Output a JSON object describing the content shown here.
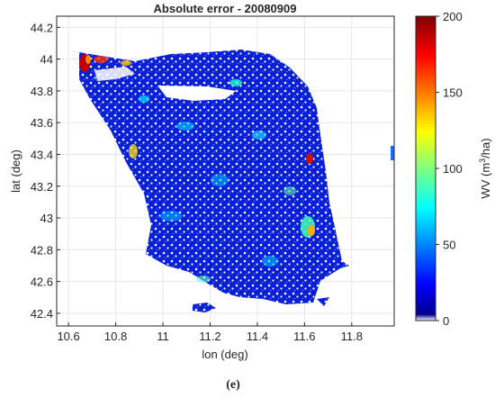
{
  "map": {
    "title": "Absolute error - 20080909",
    "xlabel": "lon (deg)",
    "ylabel": "lat (deg)",
    "panel_label": "(e)",
    "xlim": [
      10.55,
      11.98
    ],
    "ylim": [
      42.32,
      44.27
    ],
    "x_ticks": [
      "10.6",
      "10.8",
      "11",
      "11.2",
      "11.4",
      "11.6",
      "11.8"
    ],
    "y_ticks": [
      "44.2",
      "44",
      "43.8",
      "43.6",
      "43.4",
      "43.2",
      "43",
      "42.8",
      "42.6",
      "42.4"
    ],
    "grid": true,
    "colorbar": {
      "label_prefix": "WV (m",
      "label_sup": "3",
      "label_suffix": "/ha)",
      "range": [
        0,
        200
      ],
      "ticks": [
        "200",
        "150",
        "100",
        "50",
        "0"
      ],
      "colormap": "jet"
    },
    "colors": {
      "dominant": "#0a1fd6",
      "axis": "#262626",
      "grid": "#e6e6e6"
    }
  }
}
